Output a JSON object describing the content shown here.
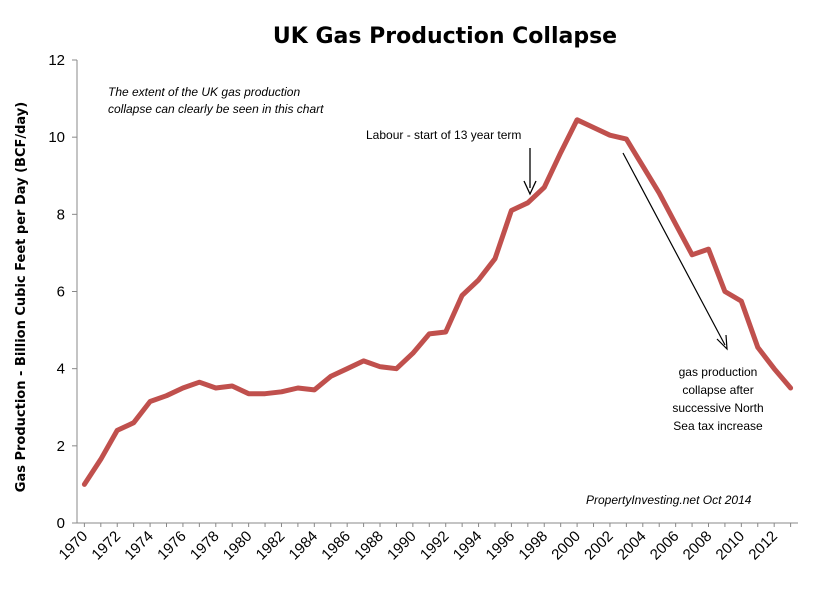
{
  "chart_data": {
    "type": "line",
    "title": "UK Gas Production Collapse",
    "xlabel": "",
    "ylabel": "Gas Production - Billion Cubic Feet per Day (BCF/day)",
    "ylim": [
      0,
      12
    ],
    "yticks": [
      "0",
      "2",
      "4",
      "6",
      "8",
      "10",
      "12"
    ],
    "xticks": [
      "1970",
      "1972",
      "1974",
      "1976",
      "1978",
      "1980",
      "1982",
      "1984",
      "1986",
      "1988",
      "1990",
      "1992",
      "1994",
      "1996",
      "1998",
      "2000",
      "2002",
      "2004",
      "2006",
      "2008",
      "2010",
      "2012"
    ],
    "grid": false,
    "series": [
      {
        "color": "#c0504d",
        "x": [
          1970,
          1971,
          1972,
          1973,
          1974,
          1975,
          1976,
          1977,
          1978,
          1979,
          1980,
          1981,
          1982,
          1983,
          1984,
          1985,
          1986,
          1987,
          1988,
          1989,
          1990,
          1991,
          1992,
          1993,
          1994,
          1995,
          1996,
          1997,
          1998,
          1999,
          2000,
          2001,
          2002,
          2003,
          2004,
          2005,
          2006,
          2007,
          2008,
          2009,
          2010,
          2011,
          2012,
          2013
        ],
        "values": [
          1.0,
          1.65,
          2.4,
          2.6,
          3.15,
          3.3,
          3.5,
          3.65,
          3.5,
          3.55,
          3.35,
          3.35,
          3.4,
          3.5,
          3.45,
          3.8,
          4.0,
          4.2,
          4.05,
          4.0,
          4.4,
          4.9,
          4.95,
          5.9,
          6.3,
          6.85,
          8.1,
          8.3,
          8.7,
          9.6,
          10.45,
          10.25,
          10.05,
          9.95,
          9.25,
          8.55,
          7.75,
          6.95,
          7.1,
          6.0,
          5.75,
          4.55,
          4.0,
          3.5
        ]
      }
    ],
    "annotations": {
      "intro": [
        "The extent of the UK gas production",
        "collapse can clearly be seen in this chart"
      ],
      "labour": "Labour - start of 13 year term",
      "collapse": [
        "gas production",
        "collapse after",
        "successive North",
        "Sea tax increase"
      ],
      "credit": "PropertyInvesting.net  Oct 2014"
    }
  }
}
